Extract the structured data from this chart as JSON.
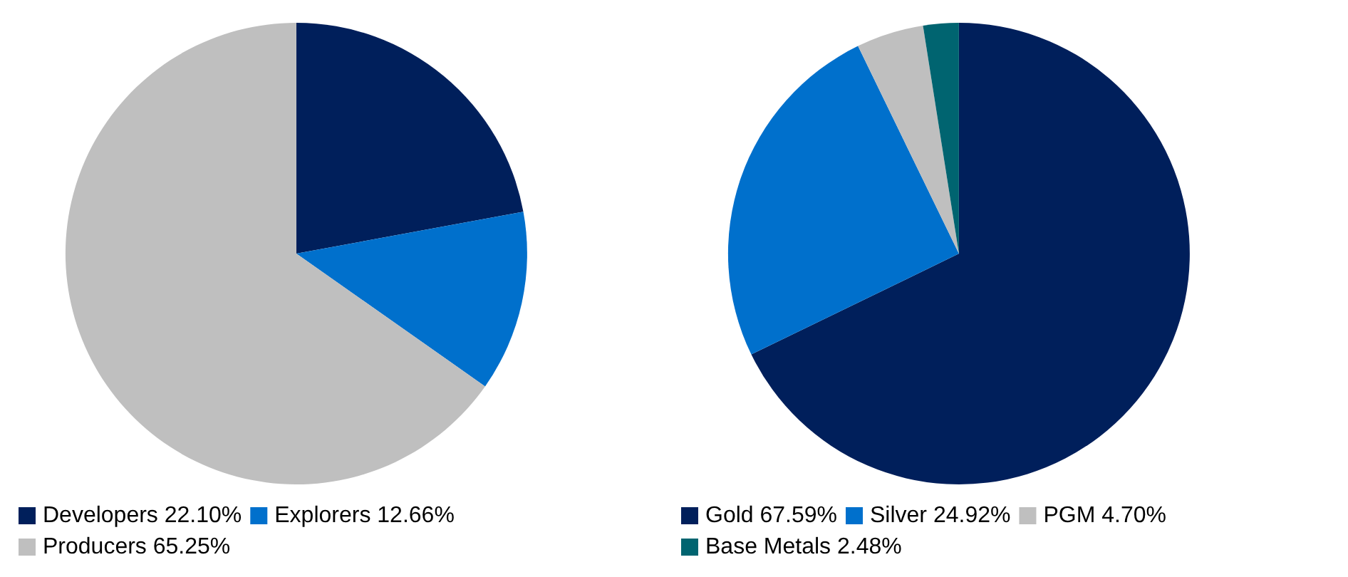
{
  "chart_data": [
    {
      "type": "pie",
      "categories": [
        "Developers 22.10%",
        "Explorers 12.66%",
        "Producers 65.25%"
      ],
      "values": [
        22.1,
        12.66,
        65.25
      ],
      "colors": [
        "#001f5b",
        "#0070cc",
        "#bfbfbf"
      ],
      "legend": "bottom"
    },
    {
      "type": "pie",
      "categories": [
        "Gold 67.59%",
        "Silver 24.92%",
        "PGM 4.70%",
        "Base Metals 2.48%"
      ],
      "values": [
        67.59,
        24.92,
        4.7,
        2.48
      ],
      "colors": [
        "#001f5b",
        "#0070cc",
        "#bfbfbf",
        "#006470"
      ],
      "legend": "bottom"
    }
  ]
}
